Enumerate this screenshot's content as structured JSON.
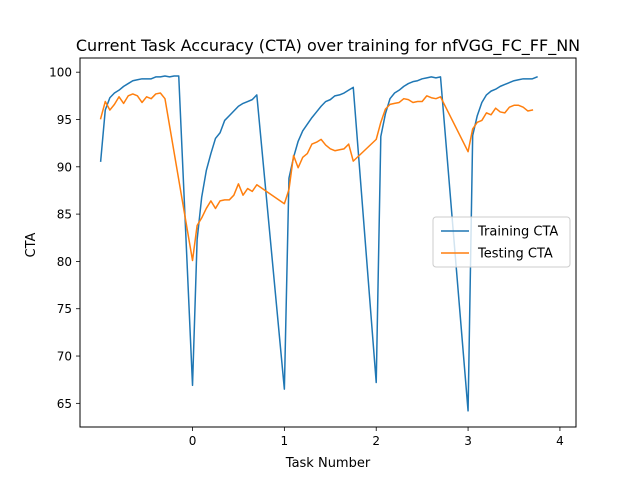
{
  "chart_data": {
    "type": "line",
    "title": "Current Task Accuracy (CTA) over training for nfVGG_FC_FF_NN",
    "xlabel": "Task Number",
    "ylabel": "CTA",
    "xlim": [
      -1.225,
      4.175
    ],
    "ylim": [
      62.5,
      101.5
    ],
    "x_ticks": [
      0,
      1,
      2,
      3,
      4
    ],
    "y_ticks": [
      65,
      70,
      75,
      80,
      85,
      90,
      95,
      100
    ],
    "grid": false,
    "legend_position": "center-right",
    "series": [
      {
        "name": "Training CTA",
        "color": "#1f77b4",
        "points": [
          [
            -1.0,
            90.6
          ],
          [
            -0.95,
            96.0
          ],
          [
            -0.9,
            97.3
          ],
          [
            -0.85,
            97.8
          ],
          [
            -0.8,
            98.1
          ],
          [
            -0.75,
            98.5
          ],
          [
            -0.7,
            98.8
          ],
          [
            -0.65,
            99.1
          ],
          [
            -0.6,
            99.2
          ],
          [
            -0.55,
            99.3
          ],
          [
            -0.5,
            99.3
          ],
          [
            -0.45,
            99.3
          ],
          [
            -0.4,
            99.5
          ],
          [
            -0.35,
            99.5
          ],
          [
            -0.3,
            99.6
          ],
          [
            -0.25,
            99.5
          ],
          [
            -0.2,
            99.6
          ],
          [
            -0.15,
            99.6
          ],
          [
            0.0,
            66.9
          ],
          [
            0.05,
            82.3
          ],
          [
            0.1,
            86.8
          ],
          [
            0.15,
            89.6
          ],
          [
            0.2,
            91.4
          ],
          [
            0.25,
            93.0
          ],
          [
            0.3,
            93.6
          ],
          [
            0.35,
            94.9
          ],
          [
            0.4,
            95.4
          ],
          [
            0.45,
            95.9
          ],
          [
            0.5,
            96.4
          ],
          [
            0.55,
            96.7
          ],
          [
            0.6,
            96.9
          ],
          [
            0.65,
            97.1
          ],
          [
            0.7,
            97.6
          ],
          [
            1.0,
            66.5
          ],
          [
            1.05,
            88.8
          ],
          [
            1.1,
            91.0
          ],
          [
            1.15,
            92.7
          ],
          [
            1.2,
            93.8
          ],
          [
            1.25,
            94.5
          ],
          [
            1.3,
            95.2
          ],
          [
            1.35,
            95.8
          ],
          [
            1.4,
            96.4
          ],
          [
            1.45,
            96.9
          ],
          [
            1.5,
            97.1
          ],
          [
            1.55,
            97.5
          ],
          [
            1.6,
            97.6
          ],
          [
            1.65,
            97.8
          ],
          [
            1.7,
            98.1
          ],
          [
            1.75,
            98.4
          ],
          [
            2.0,
            67.2
          ],
          [
            2.05,
            93.2
          ],
          [
            2.1,
            95.6
          ],
          [
            2.15,
            97.2
          ],
          [
            2.2,
            97.8
          ],
          [
            2.25,
            98.1
          ],
          [
            2.3,
            98.5
          ],
          [
            2.35,
            98.8
          ],
          [
            2.4,
            99.0
          ],
          [
            2.45,
            99.1
          ],
          [
            2.5,
            99.3
          ],
          [
            2.55,
            99.4
          ],
          [
            2.6,
            99.5
          ],
          [
            2.65,
            99.4
          ],
          [
            2.7,
            99.5
          ],
          [
            3.0,
            64.2
          ],
          [
            3.05,
            93.3
          ],
          [
            3.1,
            95.4
          ],
          [
            3.15,
            96.8
          ],
          [
            3.2,
            97.6
          ],
          [
            3.25,
            98.0
          ],
          [
            3.3,
            98.2
          ],
          [
            3.35,
            98.5
          ],
          [
            3.4,
            98.7
          ],
          [
            3.45,
            98.9
          ],
          [
            3.5,
            99.1
          ],
          [
            3.55,
            99.2
          ],
          [
            3.6,
            99.3
          ],
          [
            3.65,
            99.3
          ],
          [
            3.7,
            99.3
          ],
          [
            3.75,
            99.5
          ]
        ]
      },
      {
        "name": "Testing CTA",
        "color": "#ff7f0e",
        "points": [
          [
            -1.0,
            95.1
          ],
          [
            -0.95,
            96.9
          ],
          [
            -0.9,
            96.0
          ],
          [
            -0.85,
            96.6
          ],
          [
            -0.8,
            97.4
          ],
          [
            -0.75,
            96.7
          ],
          [
            -0.7,
            97.5
          ],
          [
            -0.65,
            97.7
          ],
          [
            -0.6,
            97.5
          ],
          [
            -0.55,
            96.8
          ],
          [
            -0.5,
            97.4
          ],
          [
            -0.45,
            97.2
          ],
          [
            -0.4,
            97.7
          ],
          [
            -0.35,
            97.8
          ],
          [
            -0.3,
            97.2
          ],
          [
            0.0,
            80.1
          ],
          [
            0.05,
            83.8
          ],
          [
            0.1,
            84.6
          ],
          [
            0.15,
            85.6
          ],
          [
            0.2,
            86.4
          ],
          [
            0.25,
            85.6
          ],
          [
            0.3,
            86.4
          ],
          [
            0.35,
            86.5
          ],
          [
            0.4,
            86.5
          ],
          [
            0.45,
            87.0
          ],
          [
            0.5,
            88.2
          ],
          [
            0.55,
            87.0
          ],
          [
            0.6,
            87.7
          ],
          [
            0.65,
            87.4
          ],
          [
            0.7,
            88.1
          ],
          [
            1.0,
            86.1
          ],
          [
            1.05,
            87.6
          ],
          [
            1.1,
            91.2
          ],
          [
            1.15,
            89.9
          ],
          [
            1.2,
            91.0
          ],
          [
            1.25,
            91.4
          ],
          [
            1.3,
            92.4
          ],
          [
            1.35,
            92.6
          ],
          [
            1.4,
            92.9
          ],
          [
            1.45,
            92.3
          ],
          [
            1.5,
            91.9
          ],
          [
            1.55,
            91.7
          ],
          [
            1.6,
            91.8
          ],
          [
            1.65,
            91.9
          ],
          [
            1.7,
            92.4
          ],
          [
            1.75,
            90.6
          ],
          [
            2.0,
            92.9
          ],
          [
            2.05,
            94.7
          ],
          [
            2.1,
            96.1
          ],
          [
            2.15,
            96.6
          ],
          [
            2.2,
            96.7
          ],
          [
            2.25,
            96.8
          ],
          [
            2.3,
            97.2
          ],
          [
            2.35,
            97.1
          ],
          [
            2.4,
            96.8
          ],
          [
            2.45,
            96.9
          ],
          [
            2.5,
            96.9
          ],
          [
            2.55,
            97.5
          ],
          [
            2.6,
            97.3
          ],
          [
            2.65,
            97.2
          ],
          [
            2.7,
            97.4
          ],
          [
            3.0,
            91.6
          ],
          [
            3.05,
            94.0
          ],
          [
            3.1,
            94.7
          ],
          [
            3.15,
            94.9
          ],
          [
            3.2,
            95.7
          ],
          [
            3.25,
            95.5
          ],
          [
            3.3,
            96.2
          ],
          [
            3.35,
            95.8
          ],
          [
            3.4,
            95.7
          ],
          [
            3.45,
            96.3
          ],
          [
            3.5,
            96.5
          ],
          [
            3.55,
            96.5
          ],
          [
            3.6,
            96.3
          ],
          [
            3.65,
            95.9
          ],
          [
            3.7,
            96.0
          ]
        ]
      }
    ]
  }
}
